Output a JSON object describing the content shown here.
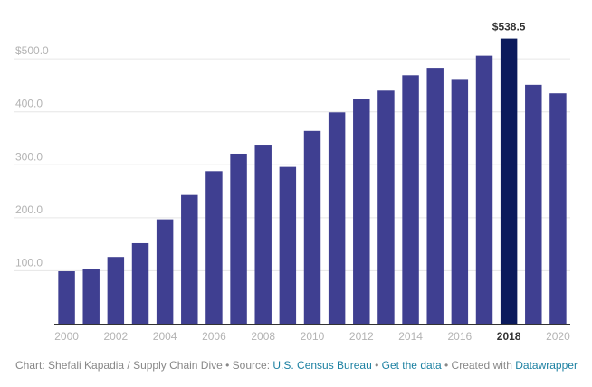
{
  "chart_data": {
    "type": "bar",
    "categories": [
      "2000",
      "2001",
      "2002",
      "2003",
      "2004",
      "2005",
      "2006",
      "2007",
      "2008",
      "2009",
      "2010",
      "2011",
      "2012",
      "2013",
      "2014",
      "2015",
      "2016",
      "2017",
      "2018",
      "2019",
      "2020"
    ],
    "values": [
      99,
      103,
      126,
      152,
      197,
      243,
      288,
      321,
      338,
      296,
      364,
      399,
      425,
      440,
      469,
      483,
      462,
      506,
      538.5,
      451,
      435
    ],
    "y_ticks": [
      {
        "value": 100,
        "label": "100.0"
      },
      {
        "value": 200,
        "label": "200.0"
      },
      {
        "value": 300,
        "label": "300.0"
      },
      {
        "value": 400,
        "label": "400.0"
      },
      {
        "value": 500,
        "label": "$500.0"
      }
    ],
    "x_tick_labels": [
      "2000",
      "2002",
      "2004",
      "2006",
      "2008",
      "2010",
      "2012",
      "2014",
      "2016",
      "2018",
      "2020"
    ],
    "highlight": {
      "category": "2018",
      "label": "$538.5",
      "color": "#0b1a5c"
    },
    "ylim": [
      0,
      560
    ],
    "grid": true,
    "colors": {
      "bar": "#3f3f91",
      "highlight": "#0b1a5c",
      "grid": "#e6e6e6",
      "axis": "#333333",
      "tick_text": "#b3b3b3"
    }
  },
  "footer": {
    "prefix": "Chart: Shefali Kapadia / Supply Chain Dive • Source: ",
    "source_link": "U.S. Census Bureau",
    "sep1": " • ",
    "data_link": "Get the data",
    "sep2": " • Created with ",
    "tool_link": "Datawrapper"
  }
}
